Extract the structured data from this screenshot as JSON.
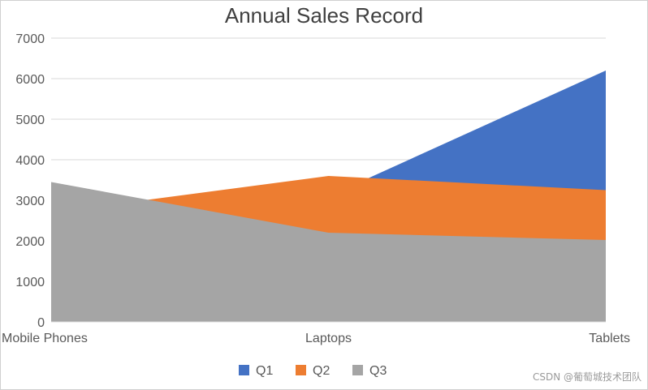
{
  "chart_data": {
    "type": "area",
    "title": "Annual Sales Record",
    "categories": [
      "Mobile Phones",
      "Laptops",
      "Tablets"
    ],
    "series": [
      {
        "name": "Q1",
        "color": "#4472C4",
        "values": [
          2300,
          3100,
          6200
        ]
      },
      {
        "name": "Q2",
        "color": "#ED7D31",
        "values": [
          2700,
          3600,
          3250
        ]
      },
      {
        "name": "Q3",
        "color": "#A5A5A5",
        "values": [
          3450,
          2200,
          2020
        ]
      }
    ],
    "ylim": [
      0,
      7000
    ],
    "yticks": [
      "0",
      "1000",
      "2000",
      "3000",
      "4000",
      "5000",
      "6000",
      "7000"
    ],
    "grid": true,
    "legend_position": "bottom"
  },
  "watermark": "CSDN @葡萄城技术团队"
}
